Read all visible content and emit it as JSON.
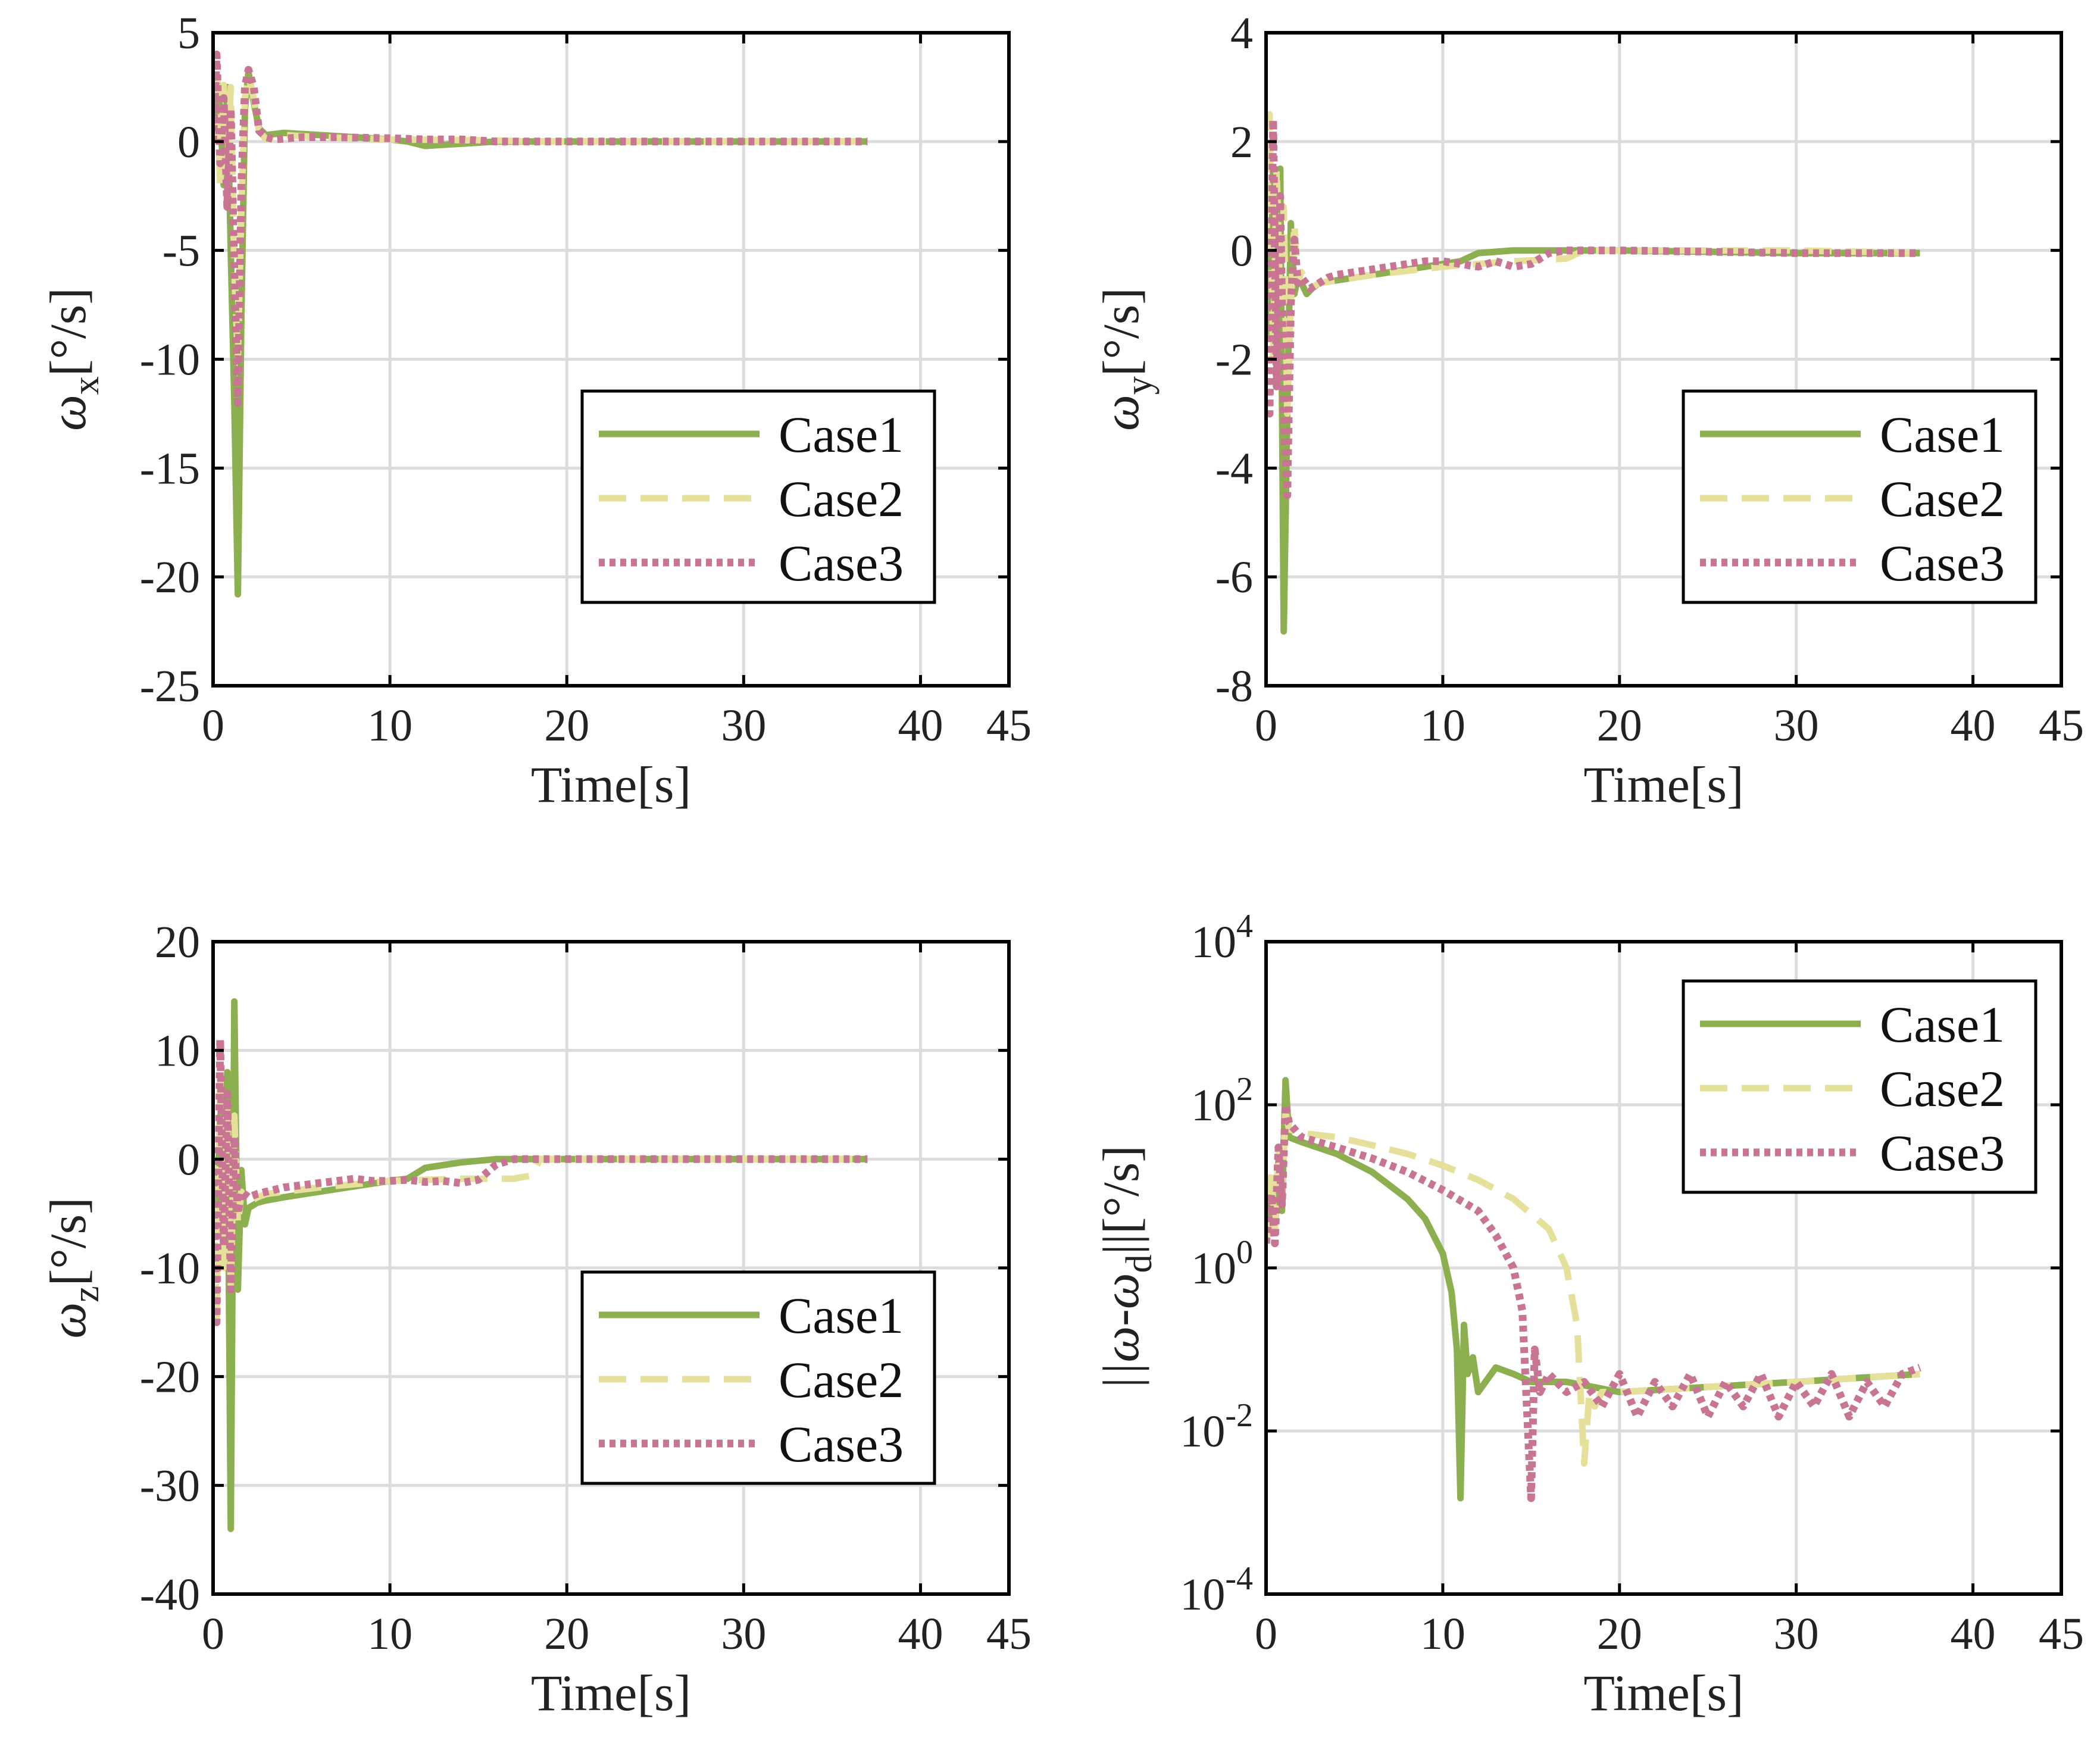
{
  "colors": {
    "case1": "#8cb04f",
    "case2": "#e6e19a",
    "case3": "#c77592"
  },
  "chart_data": [
    {
      "id": "wx",
      "type": "line",
      "yscale": "linear",
      "xlabel": "Time[s]",
      "ylabel": "ωx[°/s]",
      "ylabel_parts": {
        "symbol": "ω",
        "sub": "x",
        "unit": "[°/s]"
      },
      "xlim": [
        0,
        45
      ],
      "ylim": [
        -25,
        5
      ],
      "xticks": [
        0,
        10,
        20,
        30,
        40,
        45
      ],
      "yticks": [
        5,
        0,
        -5,
        -10,
        -15,
        -20,
        -25
      ],
      "legend": {
        "position": "bottom-right",
        "entries": [
          "Case1",
          "Case2",
          "Case3"
        ]
      },
      "series": [
        {
          "name": "Case1",
          "style": "solid",
          "x": [
            0,
            0.2,
            0.4,
            0.6,
            0.8,
            1.0,
            1.2,
            1.4,
            1.6,
            1.8,
            2.0,
            2.3,
            2.6,
            3,
            4,
            6,
            8,
            10,
            11,
            12,
            14,
            16,
            20,
            30,
            37
          ],
          "y": [
            0,
            3,
            1.5,
            -2,
            2.5,
            -5,
            -12,
            -20.8,
            -8,
            1.5,
            3.2,
            1.8,
            0.6,
            0.3,
            0.4,
            0.3,
            0.2,
            0.1,
            0,
            -0.2,
            -0.1,
            0,
            0,
            0,
            0
          ]
        },
        {
          "name": "Case2",
          "style": "dashed",
          "x": [
            0,
            0.2,
            0.4,
            0.6,
            0.8,
            1.0,
            1.2,
            1.4,
            1.6,
            1.8,
            2.0,
            2.3,
            2.6,
            3,
            4,
            6,
            10,
            16,
            18,
            20,
            30,
            37
          ],
          "y": [
            0,
            3.5,
            -2.2,
            2.6,
            -1.5,
            2.5,
            -6,
            -10,
            -3,
            2,
            3,
            2,
            0.5,
            0.1,
            0.3,
            0.2,
            0.1,
            0.05,
            0,
            0,
            0,
            0
          ]
        },
        {
          "name": "Case3",
          "style": "dotted",
          "x": [
            0,
            0.2,
            0.4,
            0.6,
            0.8,
            1.0,
            1.2,
            1.4,
            1.6,
            1.8,
            2.0,
            2.3,
            2.6,
            3,
            3.5,
            5,
            7,
            10,
            12,
            14,
            16,
            20,
            30,
            37
          ],
          "y": [
            0,
            4,
            -1,
            2,
            -3,
            1.5,
            -6,
            -12,
            -2,
            2.5,
            3.3,
            2.5,
            0.5,
            0.2,
            0.1,
            0.2,
            0.2,
            0.15,
            0.1,
            0.1,
            0,
            0,
            0,
            0
          ]
        }
      ]
    },
    {
      "id": "wy",
      "type": "line",
      "yscale": "linear",
      "xlabel": "Time[s]",
      "ylabel": "ωy[°/s]",
      "ylabel_parts": {
        "symbol": "ω",
        "sub": "y",
        "unit": "[°/s]"
      },
      "xlim": [
        0,
        45
      ],
      "ylim": [
        -8,
        4
      ],
      "xticks": [
        0,
        10,
        20,
        30,
        40,
        45
      ],
      "yticks": [
        4,
        2,
        0,
        -2,
        -4,
        -6,
        -8
      ],
      "legend": {
        "position": "bottom-right",
        "entries": [
          "Case1",
          "Case2",
          "Case3"
        ]
      },
      "series": [
        {
          "name": "Case1",
          "style": "solid",
          "x": [
            0,
            0.2,
            0.4,
            0.6,
            0.8,
            1.0,
            1.2,
            1.4,
            1.6,
            1.8,
            2.0,
            2.3,
            2.6,
            3,
            4,
            6,
            8,
            10,
            11,
            12,
            14,
            16,
            20,
            30,
            37
          ],
          "y": [
            0,
            -1.5,
            1.5,
            -2,
            1.5,
            -7,
            -3,
            0.5,
            -0.8,
            -0.5,
            -0.6,
            -0.8,
            -0.7,
            -0.6,
            -0.55,
            -0.45,
            -0.35,
            -0.25,
            -0.2,
            -0.05,
            0,
            0,
            0,
            -0.05,
            -0.05
          ]
        },
        {
          "name": "Case2",
          "style": "dashed",
          "x": [
            0,
            0.2,
            0.4,
            0.6,
            0.8,
            1.0,
            1.2,
            1.4,
            1.6,
            1.8,
            2.0,
            2.5,
            3,
            4,
            6,
            10,
            14,
            17,
            18,
            20,
            30,
            37
          ],
          "y": [
            0,
            2.5,
            -2,
            1.5,
            -1,
            0.8,
            -3,
            -1,
            0.5,
            -0.6,
            -0.4,
            -0.7,
            -0.6,
            -0.55,
            -0.45,
            -0.3,
            -0.2,
            -0.15,
            0,
            0,
            0,
            -0.05
          ]
        },
        {
          "name": "Case3",
          "style": "dotted",
          "x": [
            0,
            0.2,
            0.4,
            0.6,
            0.8,
            1.0,
            1.2,
            1.4,
            1.6,
            1.8,
            2.0,
            2.5,
            3,
            3.5,
            4,
            5,
            6,
            7,
            8,
            9,
            10,
            11,
            12,
            13,
            14,
            15,
            16,
            17,
            18,
            20,
            30,
            37
          ],
          "y": [
            0,
            -3,
            2.4,
            -2.5,
            1,
            -3,
            -4.5,
            -1,
            0.2,
            -0.6,
            -0.5,
            -0.7,
            -0.6,
            -0.5,
            -0.45,
            -0.4,
            -0.35,
            -0.3,
            -0.25,
            -0.2,
            -0.2,
            -0.25,
            -0.3,
            -0.2,
            -0.3,
            -0.25,
            -0.05,
            0,
            0,
            0,
            -0.05,
            -0.05
          ]
        }
      ]
    },
    {
      "id": "wz",
      "type": "line",
      "yscale": "linear",
      "xlabel": "Time[s]",
      "ylabel": "ωz[°/s]",
      "ylabel_parts": {
        "symbol": "ω",
        "sub": "z",
        "unit": "[°/s]"
      },
      "xlim": [
        0,
        45
      ],
      "ylim": [
        -40,
        20
      ],
      "xticks": [
        0,
        10,
        20,
        30,
        40,
        45
      ],
      "yticks": [
        20,
        10,
        0,
        -10,
        -20,
        -30,
        -40
      ],
      "legend": {
        "position": "bottom-right",
        "entries": [
          "Case1",
          "Case2",
          "Case3"
        ]
      },
      "series": [
        {
          "name": "Case1",
          "style": "solid",
          "x": [
            0,
            0.2,
            0.4,
            0.6,
            0.8,
            1.0,
            1.2,
            1.4,
            1.6,
            1.8,
            2.0,
            2.5,
            3,
            4,
            6,
            8,
            10,
            11,
            12,
            14,
            16,
            20,
            30,
            37
          ],
          "y": [
            0,
            -6,
            4,
            -10,
            8,
            -34,
            14.5,
            -12,
            -1,
            -6,
            -4.5,
            -4,
            -3.8,
            -3.5,
            -3,
            -2.5,
            -2,
            -1.8,
            -0.8,
            -0.3,
            0,
            0,
            0,
            0
          ]
        },
        {
          "name": "Case2",
          "style": "dashed",
          "x": [
            0,
            0.2,
            0.4,
            0.6,
            0.8,
            1.0,
            1.2,
            1.4,
            1.6,
            2.0,
            2.5,
            3,
            4,
            6,
            10,
            14,
            17,
            18,
            18.5,
            20,
            30,
            37
          ],
          "y": [
            0,
            -15,
            8,
            -10,
            5,
            -12,
            4,
            -6,
            -3,
            -4,
            -3.5,
            -3.2,
            -3,
            -2.6,
            -2,
            -1.8,
            -1.8,
            -1.5,
            0,
            0,
            0,
            0
          ]
        },
        {
          "name": "Case3",
          "style": "dotted",
          "x": [
            0,
            0.2,
            0.4,
            0.6,
            0.8,
            1.0,
            1.2,
            1.4,
            1.6,
            2.0,
            2.5,
            3,
            3.5,
            4,
            5,
            6,
            7,
            8,
            9,
            10,
            11,
            12,
            13,
            14,
            15,
            16,
            17,
            18,
            20,
            30,
            37
          ],
          "y": [
            0,
            -15,
            11,
            -8,
            6,
            -12,
            2,
            -5,
            -3,
            -3.5,
            -3.2,
            -3,
            -2.8,
            -2.6,
            -2.4,
            -2.2,
            -2,
            -1.8,
            -2,
            -2,
            -1.9,
            -2.1,
            -2,
            -2.2,
            -1.9,
            -0.5,
            0,
            0,
            0,
            0,
            0
          ]
        }
      ]
    },
    {
      "id": "err",
      "type": "line",
      "yscale": "log",
      "xlabel": "Time[s]",
      "ylabel": "||ω-ωd||[°/s]",
      "ylabel_parts": {
        "symbol": "||ω-ω",
        "sub": "d",
        "unit": "||[°/s]"
      },
      "xlim": [
        0,
        45
      ],
      "ylim": [
        0.0001,
        10000
      ],
      "xticks": [
        0,
        10,
        20,
        30,
        40,
        45
      ],
      "yticks": [
        10000,
        100,
        1,
        0.01,
        0.0001
      ],
      "ytick_labels": [
        {
          "base": "10",
          "exp": "4"
        },
        {
          "base": "10",
          "exp": "2"
        },
        {
          "base": "10",
          "exp": "0"
        },
        {
          "base": "10",
          "exp": "-2"
        },
        {
          "base": "10",
          "exp": "-4"
        }
      ],
      "legend": {
        "position": "top-right",
        "entries": [
          "Case1",
          "Case2",
          "Case3"
        ]
      },
      "series": [
        {
          "name": "Case1",
          "style": "solid",
          "x": [
            0,
            0.3,
            0.5,
            0.7,
            0.9,
            1.1,
            1.3,
            2,
            4,
            6,
            8,
            9,
            10,
            10.5,
            10.8,
            11.0,
            11.2,
            11.4,
            11.7,
            12,
            13,
            14,
            15,
            17,
            20,
            30,
            37
          ],
          "y": [
            2,
            10,
            3,
            20,
            5,
            200,
            40,
            35,
            25,
            15,
            7,
            4,
            1.5,
            0.5,
            0.1,
            0.0015,
            0.2,
            0.05,
            0.08,
            0.03,
            0.06,
            0.05,
            0.04,
            0.04,
            0.03,
            0.04,
            0.05
          ]
        },
        {
          "name": "Case2",
          "style": "dashed",
          "x": [
            0,
            0.3,
            0.5,
            0.7,
            0.9,
            1.1,
            1.3,
            2,
            4,
            6,
            8,
            10,
            12,
            14,
            16,
            17,
            17.6,
            18.0,
            18.3,
            18.6,
            19,
            20,
            30,
            37
          ],
          "y": [
            2,
            15,
            3,
            30,
            8,
            80,
            50,
            45,
            40,
            32,
            25,
            18,
            12,
            7,
            3,
            1,
            0.2,
            0.004,
            0.03,
            0.02,
            0.03,
            0.03,
            0.04,
            0.05
          ]
        },
        {
          "name": "Case3",
          "style": "dotted",
          "x": [
            0,
            0.3,
            0.5,
            0.7,
            0.9,
            1.1,
            1.3,
            2,
            4,
            6,
            8,
            10,
            12,
            13,
            14,
            14.5,
            15.0,
            15.2,
            15.5,
            16,
            17,
            18,
            19,
            20,
            21,
            22,
            23,
            24,
            25,
            26,
            27,
            28,
            29,
            30,
            31,
            32,
            33,
            34,
            35,
            36,
            37
          ],
          "y": [
            2,
            8,
            2,
            30,
            6,
            100,
            60,
            40,
            30,
            22,
            15,
            9,
            5,
            2.5,
            1,
            0.3,
            0.0015,
            0.1,
            0.03,
            0.05,
            0.03,
            0.04,
            0.02,
            0.05,
            0.015,
            0.04,
            0.02,
            0.05,
            0.015,
            0.04,
            0.02,
            0.05,
            0.015,
            0.04,
            0.02,
            0.05,
            0.015,
            0.04,
            0.02,
            0.05,
            0.06
          ]
        }
      ]
    }
  ]
}
